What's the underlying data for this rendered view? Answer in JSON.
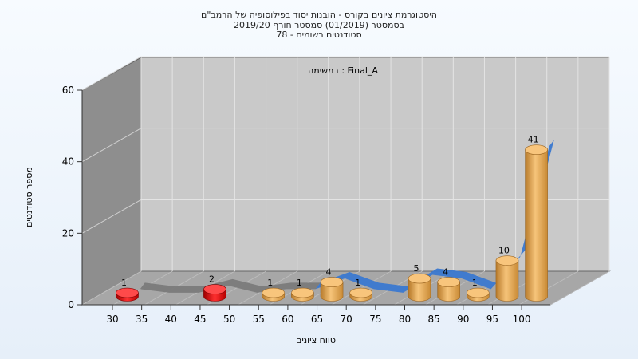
{
  "chart_data": {
    "type": "bar",
    "title_lines": [
      "היסטוגרמת ציונים בקורס - הובנות יסוד בפילוסופיה של הרמב\"ם",
      "בסמסטר  (01/2019)  סמסטר חורף 2019/20",
      "סטודנטים רשומים - 78"
    ],
    "annotation": "במשימה : Final_A",
    "xlabel": "טווח ציונים",
    "ylabel": "מספר סטודנטים",
    "categories": [
      "30",
      "35",
      "40",
      "45",
      "50",
      "55",
      "60",
      "65",
      "70",
      "75",
      "80",
      "85",
      "90",
      "95",
      "100"
    ],
    "values": [
      1,
      0,
      0,
      2,
      0,
      1,
      1,
      4,
      1,
      0,
      5,
      4,
      1,
      10,
      41
    ],
    "ylim": [
      0,
      60
    ],
    "yticks": [
      0,
      20,
      40,
      60
    ],
    "grid": true,
    "colors": {
      "fail": "#e01010",
      "pass": "#f0a848",
      "line": "#3a78d0",
      "line_grey": "#7a7a7a",
      "wall": "#8c8c8c",
      "back": "#c8c8c8"
    }
  }
}
